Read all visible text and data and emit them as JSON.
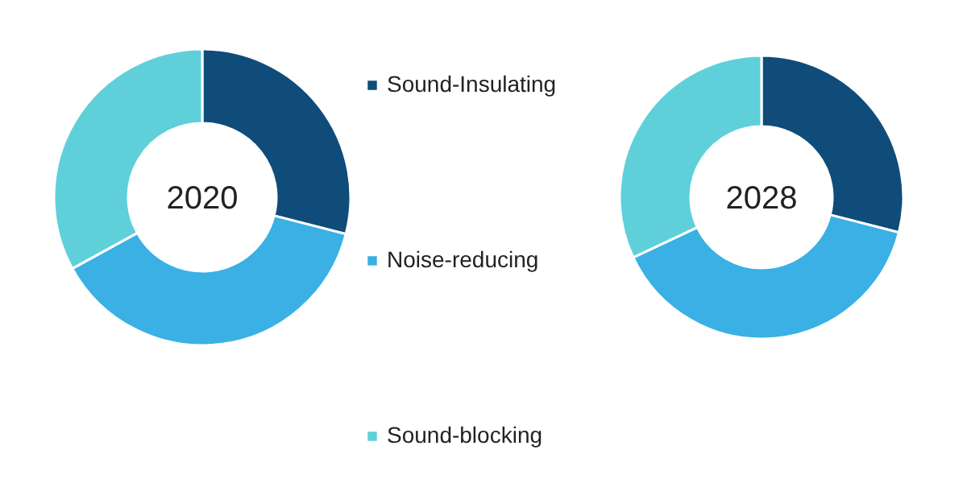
{
  "chart_data": [
    {
      "type": "donut",
      "title": "2020",
      "categories": [
        "Sound-Insulating",
        "Noise-reducing",
        "Sound-blocking"
      ],
      "values": [
        29,
        38,
        33
      ],
      "colors": [
        "#0f4c7a",
        "#3ab0e4",
        "#5fd0da"
      ],
      "legend": "right"
    },
    {
      "type": "donut",
      "title": "2028",
      "categories": [
        null,
        null,
        null
      ],
      "values": [
        29,
        39,
        32
      ],
      "colors": [
        "#0f4c7a",
        "#3ab0e4",
        "#5fd0da"
      ]
    }
  ]
}
